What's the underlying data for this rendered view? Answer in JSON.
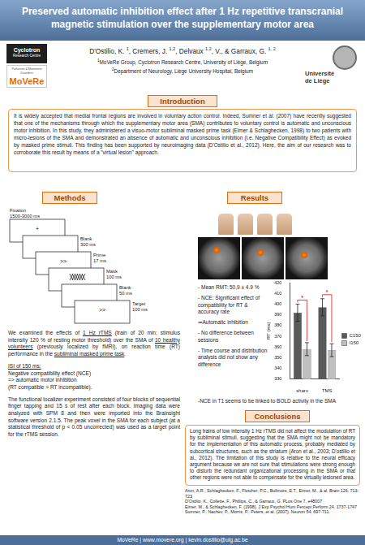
{
  "poster": {
    "title": "Preserved automatic inhibition effect after 1 Hz repetitive transcranial magnetic stimulation over the supplementary motor area",
    "authors": [
      {
        "text": "D'Ostilio, K. ",
        "sup": "1"
      },
      {
        "text": ", Cremers, J. ",
        "sup": "1,2"
      },
      {
        "text": ", Delvaux ",
        "sup": "1,2"
      },
      {
        "text": ", V., & Garraux, G. ",
        "sup": "1, 2"
      }
    ],
    "affiliations": [
      {
        "sup": "1",
        "text": "MoVeRe Group, Cyclotron Research Centre, University of Liège, Belgium"
      },
      {
        "sup": "2",
        "text": "Department of Neurology, Liège University Hospital, Belgium"
      }
    ],
    "logos": {
      "cyclotron": {
        "name": "Cyclotron",
        "sub": "Research Centre"
      },
      "movere": {
        "sub": "Parkinson & Movement Disorders",
        "name": "MoVeRe"
      },
      "university": [
        "Université",
        "de Liège"
      ]
    },
    "introduction": {
      "heading": "Introduction",
      "text": "It is widely accepted that medial frontal regions are involved in voluntary action control. Indeed, Sumner et al. (2007) have recently suggested that one of the mechanisms through which the supplementary motor area (SMA) contributes to voluntary control is automatic and unconscious motor inhibition. In this study, they administered a visuo-motor subliminal masked prime task (Eimer & Schlaghecken, 1998) to two patients with micro-lesions of the SMA and demonstrated an absence of automatic and unconscious inhibition (i.e. Negative Compatibility Effect) as evoked by masked prime stimuli. This finding has been supported by neuroimaging data (D'Ostilio et al., 2012). Here, the aim of our research was to corroborate this result by means of a \"virtual lesion\" approach."
    },
    "methods": {
      "heading": "Methods",
      "timeline": [
        {
          "label": "Fixation",
          "duration": "1500-3000 ms",
          "symbol": "+"
        },
        {
          "label": "Blank",
          "duration": "300 ms"
        },
        {
          "label": "Prime",
          "duration": "17 ms",
          "symbol": ">>"
        },
        {
          "label": "Mask",
          "duration": "100 ms",
          "pattern": "mask"
        },
        {
          "label": "Blank",
          "duration": "50 ms"
        },
        {
          "label": "Target",
          "duration": "100 ms",
          "symbol": ">>"
        }
      ],
      "paragraph1": [
        {
          "text": "We examined the effects of "
        },
        {
          "text": "1 Hz rTMS",
          "underline": true
        },
        {
          "text": " (train of 20 min; stimulus intensity 120 % of resting motor threshold) over the SMA of "
        },
        {
          "text": "10 healthy volunteers",
          "underline": true
        },
        {
          "text": " (previously localized by fMRI), on reaction time (RT) performance in the "
        },
        {
          "text": "subliminal masked prime task",
          "underline": true
        },
        {
          "text": "."
        }
      ],
      "isi_heading": "ISI of 150 ms:",
      "isi_lines": [
        "Negative compatibility effect (NCE)",
        "=> automatic motor inhibition",
        "(RT compatible > RT incompatible)."
      ],
      "paragraph2": "The functional localizer experiment consisted of four blocks of sequential finger tapping and 15 s of rest after each block. Imaging data were analyzed with SPM 8 and then were imported into the Brainsight software version 2.1.5. The peak voxel in the SMA for each subject (at a statistical threshold of p < 0.05 uncorrected) was used as a target point for the rTMS session."
    },
    "results": {
      "heading": "Results",
      "bullets": [
        "- Mean RMT: 50,9 ± 4.9 %",
        "- NCE: Significant effect of compatibility for RT & accuracy rate",
        "⇒Automatic inhibition",
        "- No difference between sessions",
        "- Time course and distribution analysis did not show any difference"
      ],
      "last_bullet": "-NCE in T1 seems to be linked to BOLD activity in the SMA"
    },
    "conclusions": {
      "heading": "Conclusions",
      "text": "Long trains of low intensity 1 Hz rTMS did not affect the modulation of RT by subliminal stimuli, suggesting that the SMA might not be mandatory for the implementation of this automatic process, probably mediated by subcortical structures, such as the striatum (Aron et al., 2003; D'ostilio et al., 2012). The limitation of this study is relative to the neural efficacy argument because we are not sure that stimulations were strong enough to disturb the redundant organizational processing in the SMA or that other regions were not able to compensate for the virtually lesioned area."
    },
    "references": [
      "Aron, A.R., Schlaghecken, F., Fletcher, P.C., Bullmore, E.T., Eimer, M., & al. Brain 126, 713-723",
      "D'Ostilio, K., Collette, F., Phillips, C., & Garraux, G. PLos One 7, e48007",
      "Eimer, M., & Schlaghecken, F. (1998). J Exp Psychol Hum Percept Perform 24, 1737-1747",
      "Sumner, P., Nachev, P., Morris, P., Peters, et al. (2007). Neuron 54, 697-711."
    ],
    "footer": "MoVeRe | www.movere.org | kevin.dostilio@ulg.ac.be"
  },
  "chart_data": {
    "type": "bar",
    "y_label": "RT (ms)",
    "categories": [
      "sham",
      "TMS"
    ],
    "series": [
      {
        "name": "C150",
        "color": "#595959",
        "values": [
          392,
          397
        ],
        "errors": [
          8,
          8
        ]
      },
      {
        "name": "I150",
        "color": "#bfbfbf",
        "values": [
          358,
          357
        ],
        "errors": [
          6,
          6
        ]
      }
    ],
    "annotations": [
      "*",
      "*"
    ],
    "ylim": [
      330,
      420
    ],
    "yticks": [
      330,
      340,
      350,
      360,
      370,
      380,
      390,
      400,
      410,
      420
    ],
    "grid": false,
    "legend": "right"
  }
}
